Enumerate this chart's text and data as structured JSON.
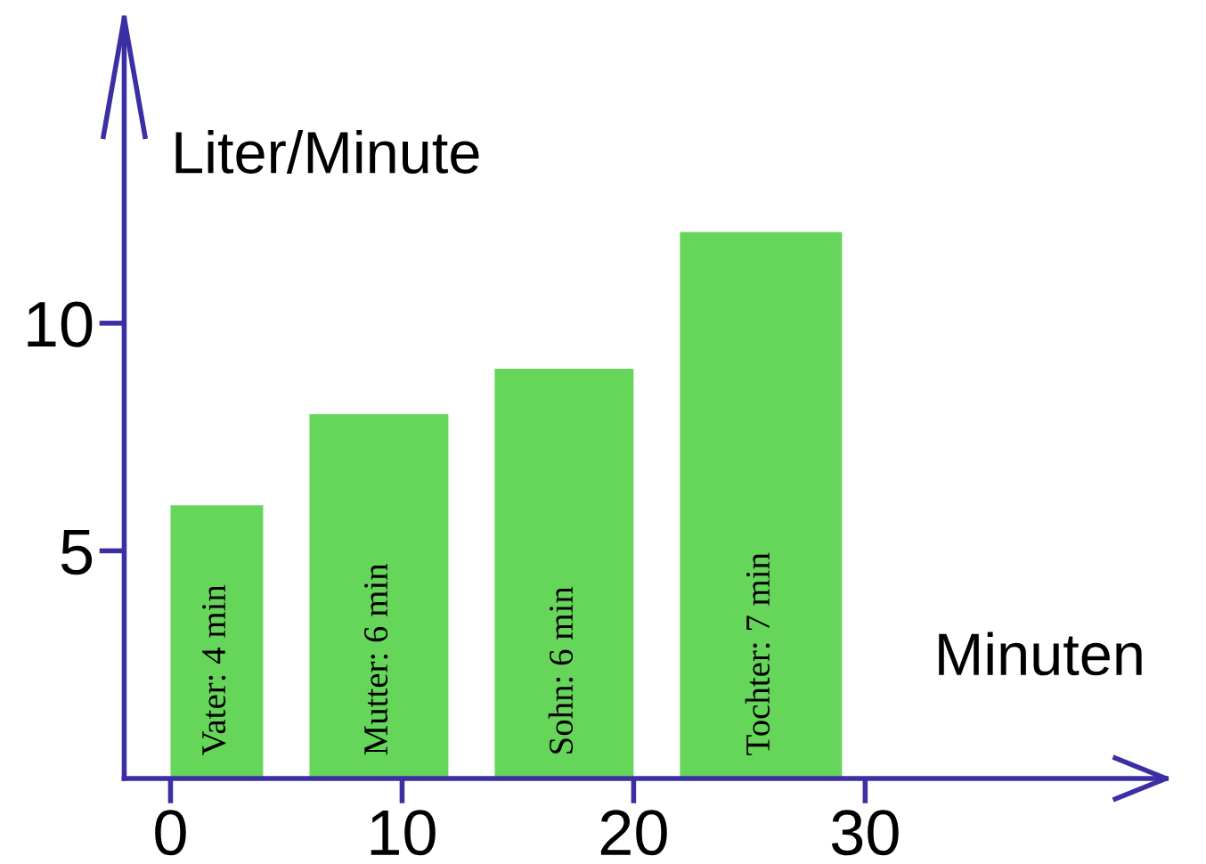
{
  "chart_data": {
    "type": "histogram",
    "xlabel": "Minuten",
    "ylabel": "Liter/Minute",
    "bins": [
      0,
      4,
      6,
      12,
      14,
      20,
      22,
      29
    ],
    "values": [
      6,
      null,
      8,
      null,
      9,
      null,
      12
    ],
    "color": "#66d65a",
    "xlim": [
      -2,
      43
    ],
    "ylim": [
      0,
      16.7
    ],
    "xticks": [
      0,
      10,
      20,
      30
    ],
    "yticks": [
      5,
      10
    ],
    "grid": false,
    "annotations": [
      "Vater: 4 min",
      "Mutter: 6 min",
      "Sohn: 6 min",
      "Tochter: 7 min"
    ]
  }
}
